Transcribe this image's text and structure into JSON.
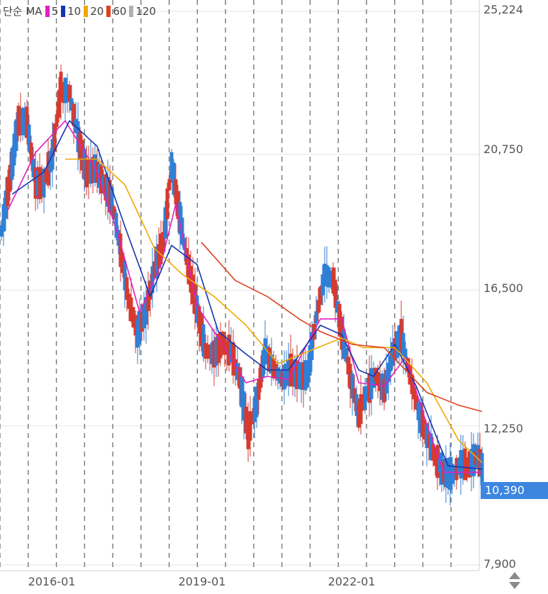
{
  "legend": {
    "prefix": "단순 MA",
    "items": [
      {
        "label": "5",
        "color": "#e020c0"
      },
      {
        "label": "10",
        "color": "#1535b0"
      },
      {
        "label": "20",
        "color": "#f0a800"
      },
      {
        "label": "60",
        "color": "#e04020"
      },
      {
        "label": "120",
        "color": "#b0b0b0"
      }
    ]
  },
  "last_price": "10,390",
  "colors": {
    "up": "#d63a2f",
    "down": "#2f7fd6",
    "grid": "#e6e6e6",
    "vline": "#777777",
    "last_box": "#3d86e0"
  },
  "chart_data": {
    "type": "candlestick",
    "title": "",
    "xlabel": "",
    "ylabel": "",
    "ylim": [
      7900,
      25224
    ],
    "y_ticks": [
      {
        "value": 25224,
        "label": "25,224"
      },
      {
        "value": 20750,
        "label": "20,750"
      },
      {
        "value": 16500,
        "label": "16,500"
      },
      {
        "value": 12250,
        "label": "12,250"
      },
      {
        "value": 7900,
        "label": "7,900"
      }
    ],
    "x_ticks": [
      {
        "value": "2016-01",
        "label": "2016-01"
      },
      {
        "value": "2019-01",
        "label": "2019-01"
      },
      {
        "value": "2022-01",
        "label": "2022-01"
      }
    ],
    "date_range": [
      "2015-07",
      "2023-12"
    ],
    "period_lines": [
      "2015-07",
      "2016-01",
      "2016-07",
      "2017-01",
      "2017-07",
      "2018-01",
      "2018-07",
      "2019-01",
      "2019-07",
      "2020-01",
      "2020-07",
      "2021-01",
      "2021-07",
      "2022-01",
      "2022-07",
      "2023-01",
      "2023-07"
    ],
    "last_price": 10390,
    "candle_anchors": [
      [
        0,
        17500,
        19200
      ],
      [
        4,
        19200,
        20800
      ],
      [
        8,
        20800,
        22800
      ],
      [
        12,
        23000,
        20500
      ],
      [
        16,
        20500,
        19200
      ],
      [
        20,
        19500,
        20200
      ],
      [
        24,
        20300,
        21200
      ],
      [
        28,
        21500,
        24200
      ],
      [
        32,
        23500,
        21800
      ],
      [
        36,
        21800,
        20800
      ],
      [
        40,
        20800,
        19500
      ],
      [
        44,
        19800,
        20800
      ],
      [
        48,
        20500,
        19200
      ],
      [
        52,
        19500,
        19100
      ],
      [
        56,
        18500,
        17000
      ],
      [
        60,
        16500,
        15800
      ],
      [
        64,
        15800,
        14500
      ],
      [
        68,
        15200,
        16500
      ],
      [
        72,
        16500,
        17800
      ],
      [
        76,
        17500,
        18500
      ],
      [
        80,
        19800,
        21000
      ],
      [
        84,
        19500,
        18000
      ],
      [
        88,
        17800,
        16500
      ],
      [
        92,
        16800,
        15000
      ],
      [
        96,
        15200,
        14000
      ],
      [
        100,
        14200,
        14800
      ],
      [
        104,
        15200,
        14500
      ],
      [
        108,
        14800,
        14300
      ],
      [
        112,
        14500,
        13000
      ],
      [
        116,
        13500,
        10500
      ],
      [
        120,
        10500,
        15500
      ],
      [
        124,
        15000,
        14200
      ],
      [
        128,
        14300,
        13800
      ],
      [
        132,
        13500,
        13900
      ],
      [
        136,
        13800,
        14200
      ],
      [
        140,
        14100,
        13500
      ],
      [
        144,
        13200,
        14500
      ],
      [
        148,
        15000,
        16300
      ],
      [
        152,
        16500,
        17500
      ],
      [
        156,
        17800,
        15800
      ],
      [
        160,
        15500,
        14800
      ],
      [
        164,
        14600,
        13000
      ],
      [
        168,
        12800,
        12400
      ],
      [
        172,
        12800,
        13800
      ],
      [
        176,
        14200,
        13500
      ],
      [
        180,
        13500,
        13200
      ],
      [
        184,
        13500,
        15500
      ],
      [
        188,
        15700,
        14500
      ],
      [
        192,
        14500,
        13200
      ],
      [
        196,
        13100,
        12300
      ],
      [
        200,
        12300,
        11600
      ],
      [
        204,
        11500,
        11000
      ],
      [
        208,
        11000,
        10600
      ],
      [
        212,
        10600,
        10900
      ],
      [
        216,
        11000,
        11100
      ],
      [
        220,
        11100,
        11000
      ],
      [
        224,
        11200,
        11400
      ],
      [
        226,
        11400,
        10390
      ]
    ],
    "series": [
      {
        "name": "5",
        "color": "#e020c0",
        "values": [
          [
            3,
            19000
          ],
          [
            16,
            20800
          ],
          [
            30,
            21800
          ],
          [
            45,
            20200
          ],
          [
            55,
            18200
          ],
          [
            65,
            15800
          ],
          [
            75,
            17300
          ],
          [
            82,
            19200
          ],
          [
            92,
            16000
          ],
          [
            105,
            14700
          ],
          [
            115,
            13600
          ],
          [
            125,
            13800
          ],
          [
            135,
            13700
          ],
          [
            150,
            15600
          ],
          [
            160,
            15600
          ],
          [
            168,
            13600
          ],
          [
            180,
            13500
          ],
          [
            190,
            14400
          ],
          [
            200,
            12300
          ],
          [
            208,
            10800
          ],
          [
            226,
            10800
          ]
        ]
      },
      {
        "name": "10",
        "color": "#1535b0",
        "values": [
          [
            5,
            19500
          ],
          [
            20,
            20200
          ],
          [
            32,
            21800
          ],
          [
            45,
            21000
          ],
          [
            58,
            18500
          ],
          [
            70,
            16300
          ],
          [
            80,
            17900
          ],
          [
            92,
            17300
          ],
          [
            102,
            15200
          ],
          [
            115,
            14500
          ],
          [
            125,
            14000
          ],
          [
            135,
            14000
          ],
          [
            150,
            15400
          ],
          [
            160,
            15100
          ],
          [
            168,
            14000
          ],
          [
            175,
            13800
          ],
          [
            185,
            14800
          ],
          [
            195,
            13500
          ],
          [
            210,
            11000
          ],
          [
            226,
            10900
          ]
        ]
      },
      {
        "name": "20",
        "color": "#f0a800",
        "values": [
          [
            30,
            20600
          ],
          [
            45,
            20600
          ],
          [
            58,
            19800
          ],
          [
            72,
            17800
          ],
          [
            85,
            17000
          ],
          [
            100,
            16300
          ],
          [
            115,
            15400
          ],
          [
            130,
            14200
          ],
          [
            145,
            14600
          ],
          [
            160,
            15000
          ],
          [
            170,
            14700
          ],
          [
            185,
            14700
          ],
          [
            200,
            13600
          ],
          [
            215,
            11800
          ],
          [
            226,
            11100
          ]
        ]
      },
      {
        "name": "60",
        "color": "#e04020",
        "values": [
          [
            94,
            18000
          ],
          [
            110,
            16800
          ],
          [
            125,
            16300
          ],
          [
            140,
            15600
          ],
          [
            150,
            15200
          ],
          [
            165,
            14800
          ],
          [
            180,
            14700
          ],
          [
            200,
            13300
          ],
          [
            215,
            12900
          ],
          [
            226,
            12700
          ]
        ]
      }
    ]
  }
}
